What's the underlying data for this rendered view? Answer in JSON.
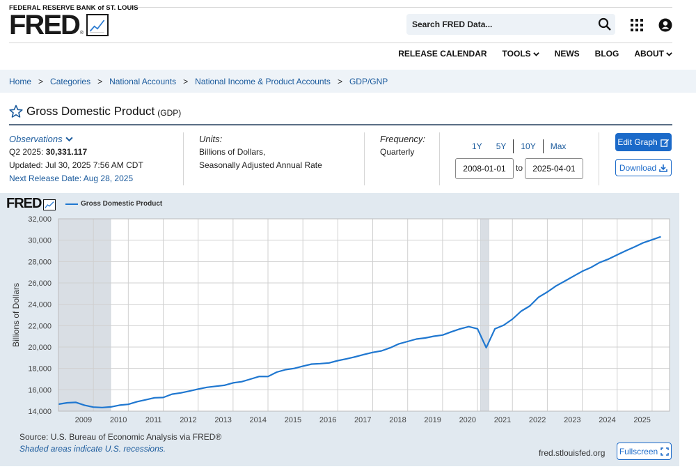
{
  "header": {
    "org": "FEDERAL RESERVE BANK of ST. LOUIS",
    "logo": "FRED",
    "logo_reg": "®",
    "search_placeholder": "Search FRED Data...",
    "icons": [
      "search-icon",
      "grid-icon",
      "user-icon"
    ]
  },
  "nav": {
    "items": [
      {
        "label": "RELEASE CALENDAR"
      },
      {
        "label": "TOOLS"
      },
      {
        "label": "NEWS"
      },
      {
        "label": "BLOG"
      },
      {
        "label": "ABOUT"
      }
    ]
  },
  "breadcrumb": [
    "Home",
    "Categories",
    "National Accounts",
    "National Income & Product Accounts",
    "GDP/GNP"
  ],
  "series": {
    "title": "Gross Domestic Product",
    "code": "(GDP)"
  },
  "meta": {
    "observations_label": "Observations",
    "latest_period": "Q2 2025:",
    "latest_value": "30,331.117",
    "updated": "Updated: Jul 30, 2025 7:56 AM CDT",
    "next_release": "Next Release Date: Aug 28, 2025",
    "units_label": "Units:",
    "units_line1": "Billions of Dollars,",
    "units_line2": "Seasonally Adjusted Annual Rate",
    "frequency_label": "Frequency:",
    "frequency_value": "Quarterly"
  },
  "range": {
    "buttons": [
      "1Y",
      "5Y",
      "10Y",
      "Max"
    ],
    "start": "2008-01-01",
    "to_label": "to",
    "end": "2025-04-01"
  },
  "actions": {
    "edit": "Edit Graph",
    "download": "Download"
  },
  "graph": {
    "logo": "FRED",
    "source": "Source: U.S. Bureau of Economic Analysis via FRED®",
    "shade_note": "Shaded areas indicate U.S. recessions.",
    "site": "fred.stlouisfed.org",
    "fullscreen": "Fullscreen"
  },
  "chart_data": {
    "type": "line",
    "title": "",
    "xlabel": "",
    "ylabel": "Billions of Dollars",
    "ylim": [
      14000,
      32000
    ],
    "y_ticks": [
      "14,000",
      "16,000",
      "18,000",
      "20,000",
      "22,000",
      "24,000",
      "26,000",
      "28,000",
      "30,000",
      "32,000"
    ],
    "x_ticks": [
      "2009",
      "2010",
      "2011",
      "2012",
      "2013",
      "2014",
      "2015",
      "2016",
      "2017",
      "2018",
      "2019",
      "2020",
      "2021",
      "2022",
      "2023",
      "2024",
      "2025"
    ],
    "grid": true,
    "legend_position": "top-left",
    "series": [
      {
        "name": "Gross Domestic Product",
        "color": "#1f77d0",
        "x_start": "2008-01-01",
        "frequency": "quarterly",
        "values": [
          14650,
          14780,
          14820,
          14550,
          14380,
          14340,
          14400,
          14560,
          14640,
          14890,
          15060,
          15250,
          15280,
          15590,
          15710,
          15880,
          16070,
          16230,
          16330,
          16420,
          16650,
          16760,
          17000,
          17250,
          17240,
          17650,
          17880,
          18000,
          18210,
          18400,
          18450,
          18510,
          18730,
          18900,
          19090,
          19300,
          19500,
          19640,
          19930,
          20300,
          20520,
          20750,
          20850,
          21010,
          21120,
          21420,
          21700,
          21910,
          21710,
          19940,
          21700,
          22050,
          22610,
          23360,
          23850,
          24670,
          25150,
          25720,
          26170,
          26630,
          27090,
          27450,
          27920,
          28230,
          28630,
          29020,
          29370,
          29760,
          30040,
          30331
        ]
      }
    ],
    "recessions": [
      [
        "2008-01-01",
        "2009-06-30"
      ],
      [
        "2020-02-01",
        "2020-04-30"
      ]
    ]
  }
}
